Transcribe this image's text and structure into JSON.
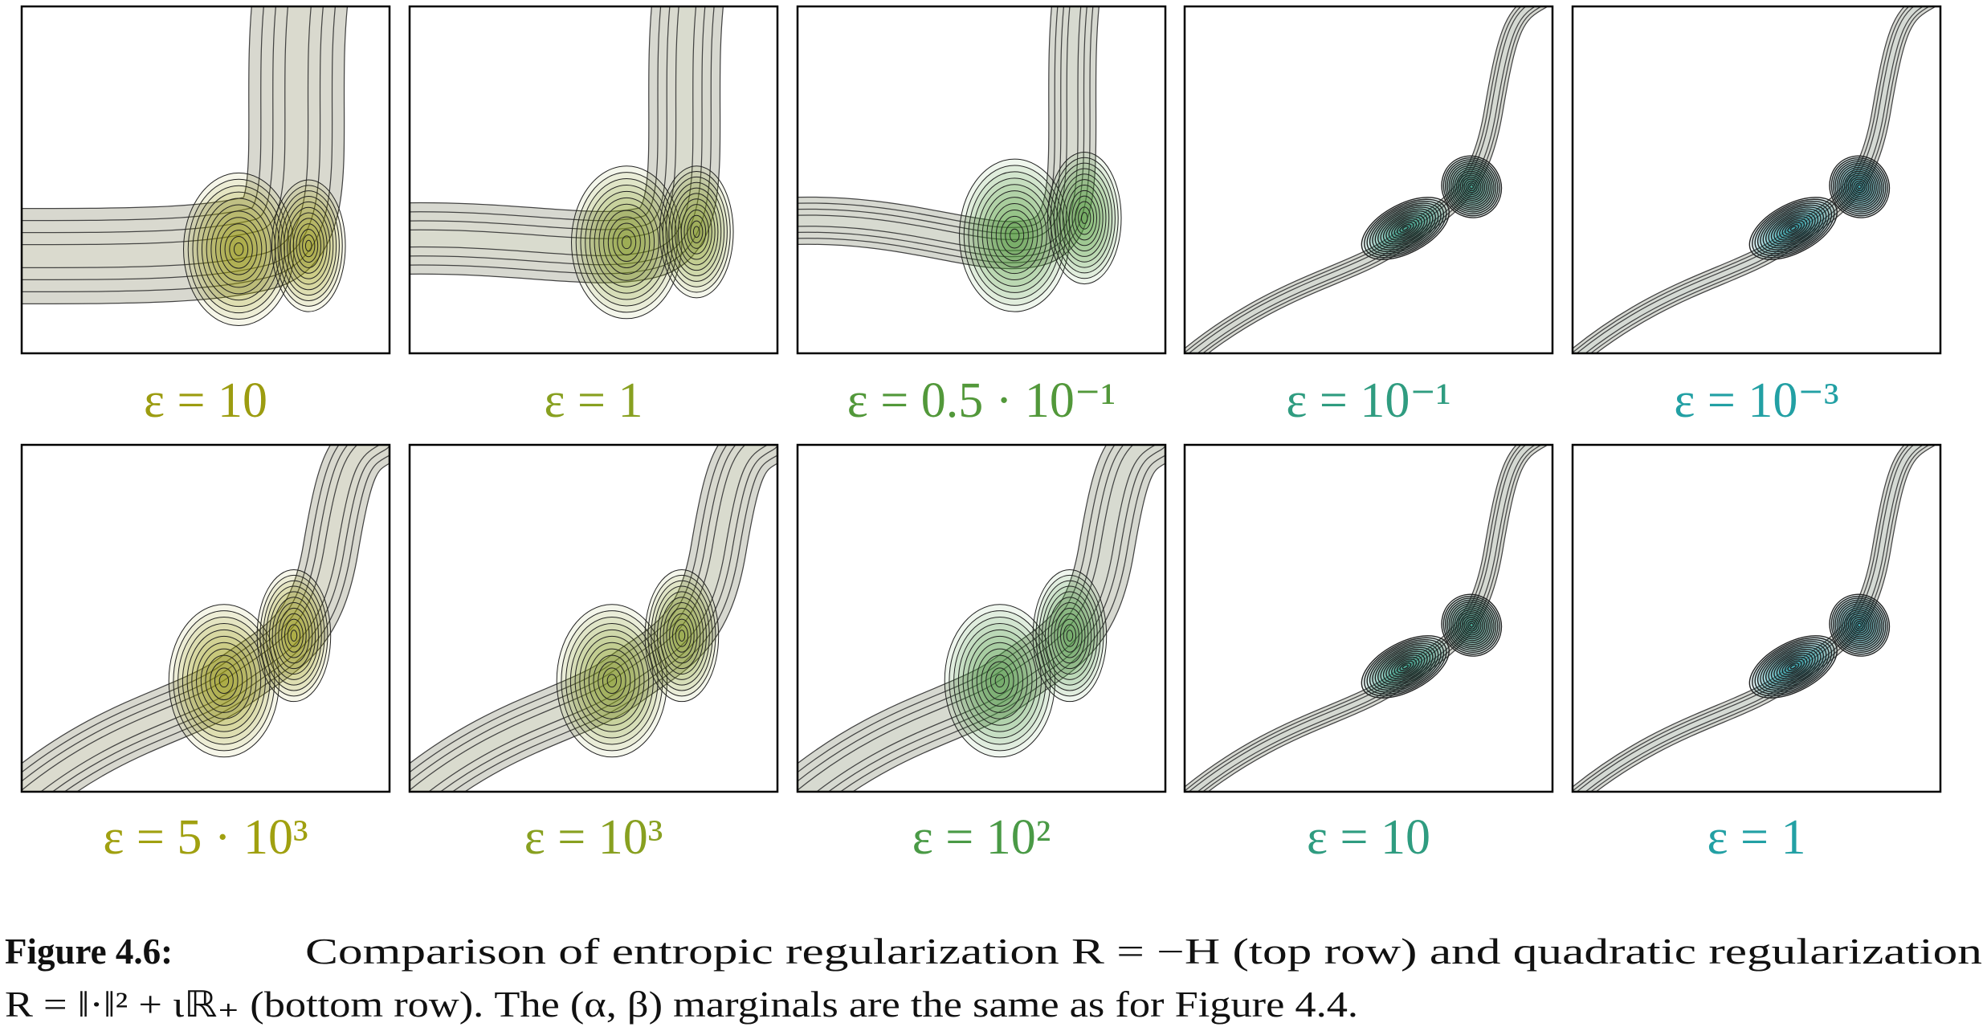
{
  "figure": {
    "panels": [
      [
        {
          "label": "ε = 10",
          "color": "#9c9c10"
        },
        {
          "label": "ε = 1",
          "color": "#88a020"
        },
        {
          "label": "ε = 0.5 · 10⁻¹",
          "color": "#52983a"
        },
        {
          "label": "ε = 10⁻¹",
          "color": "#2f9c80"
        },
        {
          "label": "ε = 10⁻³",
          "color": "#22a0a4"
        }
      ],
      [
        {
          "label": "ε = 5 · 10³",
          "color": "#a0a010"
        },
        {
          "label": "ε = 10³",
          "color": "#88a020"
        },
        {
          "label": "ε = 10²",
          "color": "#4a9a46"
        },
        {
          "label": "ε = 10",
          "color": "#2f9c80"
        },
        {
          "label": "ε = 1",
          "color": "#22a0a4"
        }
      ]
    ],
    "caption": {
      "label": "Figure 4.6:",
      "line1": "Comparison of entropic regularization R = −H (top row) and quadratic regularization",
      "line2": "R = ‖·‖² + ιℝ₊ (bottom row). The (α, β) marginals are the same as for Figure 4.4."
    }
  }
}
